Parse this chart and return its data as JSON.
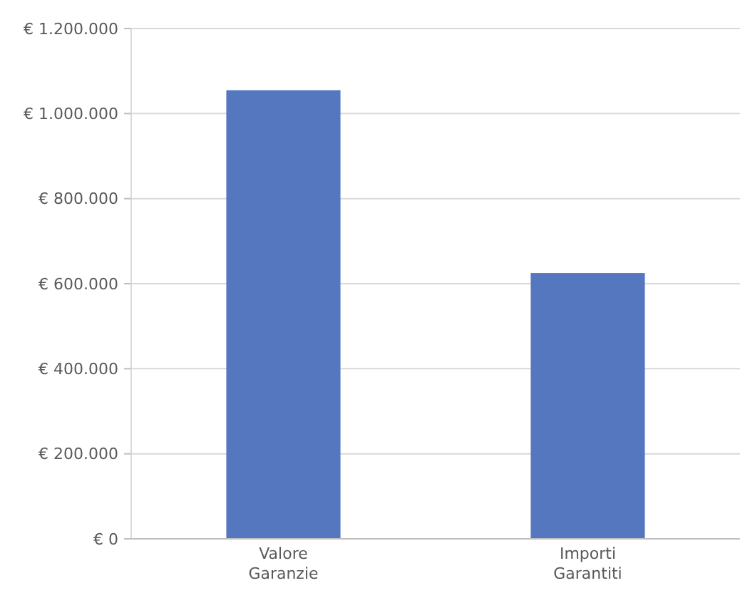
{
  "chart_data": {
    "type": "bar",
    "categories": [
      "Valore Garanzie",
      "Importi Garantiti"
    ],
    "values": [
      1055000,
      625000
    ],
    "color": "#5577c0",
    "ylim": [
      0,
      1200000
    ],
    "yticks": [
      {
        "value": 0,
        "label": "€ 0"
      },
      {
        "value": 200000,
        "label": "€ 200.000"
      },
      {
        "value": 400000,
        "label": "€ 400.000"
      },
      {
        "value": 600000,
        "label": "€ 600.000"
      },
      {
        "value": 800000,
        "label": "€ 800.000"
      },
      {
        "value": 1000000,
        "label": "€ 1.000.000"
      },
      {
        "value": 1200000,
        "label": "€ 1.200.000"
      }
    ],
    "grid": "y"
  }
}
